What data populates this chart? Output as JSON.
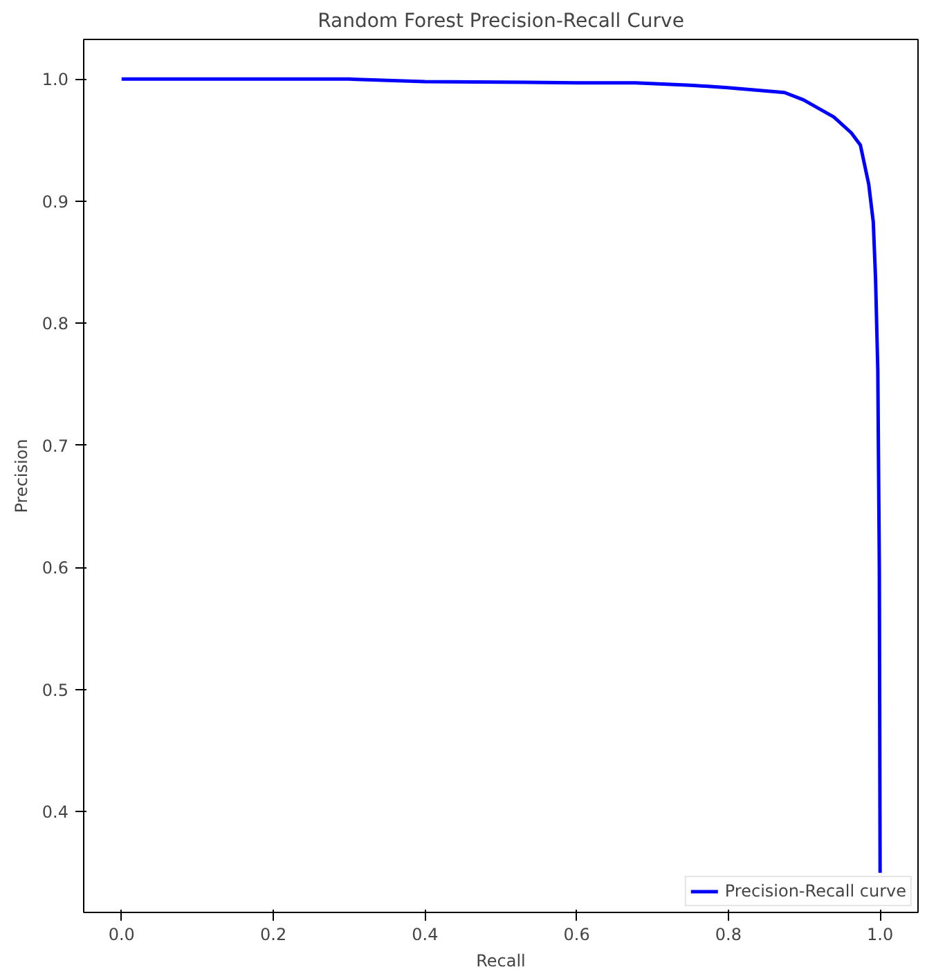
{
  "chart_data": {
    "type": "line",
    "title": "Random Forest Precision-Recall Curve",
    "xlabel": "Recall",
    "ylabel": "Precision",
    "x": [
      0.0,
      0.3,
      0.4,
      0.6,
      0.677,
      0.75,
      0.799,
      0.874,
      0.899,
      0.939,
      0.962,
      0.974,
      0.985,
      0.991,
      0.994,
      0.997,
      0.999,
      1.0
    ],
    "series": [
      {
        "name": "Precision-Recall curve",
        "color": "#0000ff",
        "values": [
          1.0,
          1.0,
          0.998,
          0.997,
          0.997,
          0.995,
          0.993,
          0.989,
          0.983,
          0.969,
          0.956,
          0.946,
          0.914,
          0.883,
          0.837,
          0.761,
          0.6,
          0.35
        ]
      }
    ],
    "xlim": [
      -0.05,
      1.05
    ],
    "ylim": [
      0.3175,
      1.0325
    ],
    "xticks": [
      {
        "value": 0,
        "label": "0.0"
      },
      0.2,
      0.4,
      0.6,
      0.8,
      {
        "value": 1,
        "label": "1.0"
      }
    ],
    "yticks": [
      0.4,
      0.5,
      0.6,
      0.7,
      0.8,
      0.9,
      {
        "value": 1,
        "label": "1.0"
      }
    ],
    "grid": false,
    "legend": "bottom right",
    "marker": "none",
    "line_style": "solid"
  }
}
